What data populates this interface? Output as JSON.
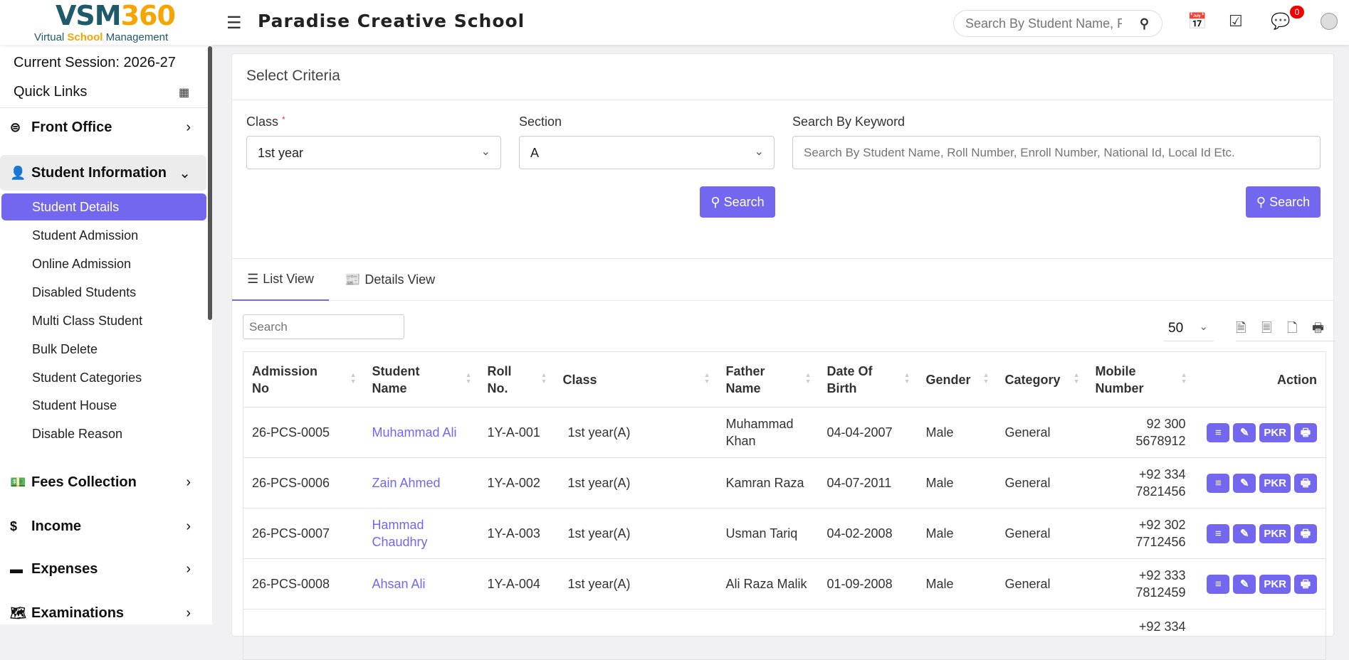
{
  "header": {
    "logo_main": "VSM",
    "logo_num": "360",
    "logo_sub_1": "Virtual",
    "logo_sub_2": "School",
    "logo_sub_3": "Management",
    "school_name": "Paradise Creative School",
    "search_placeholder": "Search By Student Name, Roll Number",
    "notification_count": "0"
  },
  "sidebar": {
    "session": "Current Session: 2026-27",
    "quick_links": "Quick Links",
    "menus": [
      {
        "label": "Front Office",
        "icon": "front-office-icon"
      },
      {
        "label": "Student Information",
        "icon": "user-plus-icon"
      },
      {
        "label": "Fees Collection",
        "icon": "money-icon"
      },
      {
        "label": "Income",
        "icon": "dollar-icon"
      },
      {
        "label": "Expenses",
        "icon": "credit-card-icon"
      },
      {
        "label": "Examinations",
        "icon": "map-icon"
      }
    ],
    "sub_items": [
      "Student Details",
      "Student Admission",
      "Online Admission",
      "Disabled Students",
      "Multi Class Student",
      "Bulk Delete",
      "Student Categories",
      "Student House",
      "Disable Reason"
    ]
  },
  "criteria": {
    "title": "Select Criteria",
    "class_label": "Class",
    "required_mark": "*",
    "class_value": "1st year",
    "section_label": "Section",
    "section_value": "A",
    "keyword_label": "Search By Keyword",
    "keyword_placeholder": "Search By Student Name, Roll Number, Enroll Number, National Id, Local Id Etc.",
    "search_button": "Search"
  },
  "tabs": {
    "list_view": "List View",
    "details_view": "Details View"
  },
  "table_controls": {
    "search_placeholder": "Search",
    "page_size": "50"
  },
  "accent_color": "#7367f0",
  "table": {
    "columns": [
      "Admission No",
      "Student Name",
      "Roll No.",
      "Class",
      "Father Name",
      "Date Of Birth",
      "Gender",
      "Category",
      "Mobile Number",
      "Action"
    ],
    "action_pkr": "PKR",
    "rows": [
      {
        "admission": "26-PCS-0005",
        "name": "Muhammad Ali",
        "roll": "1Y-A-001",
        "class": "1st year(A)",
        "father": "Muhammad Khan",
        "dob": "04-04-2007",
        "gender": "Male",
        "category": "General",
        "mobile": "92 300 5678912"
      },
      {
        "admission": "26-PCS-0006",
        "name": "Zain Ahmed",
        "roll": "1Y-A-002",
        "class": "1st year(A)",
        "father": "Kamran Raza",
        "dob": "04-07-2011",
        "gender": "Male",
        "category": "General",
        "mobile": "+92 334 7821456"
      },
      {
        "admission": "26-PCS-0007",
        "name": "Hammad Chaudhry",
        "roll": "1Y-A-003",
        "class": "1st year(A)",
        "father": "Usman Tariq",
        "dob": "04-02-2008",
        "gender": "Male",
        "category": "General",
        "mobile": "+92 302 7712456"
      },
      {
        "admission": "26-PCS-0008",
        "name": "Ahsan Ali",
        "roll": "1Y-A-004",
        "class": "1st year(A)",
        "father": "Ali Raza Malik",
        "dob": "01-09-2008",
        "gender": "Male",
        "category": "General",
        "mobile": "+92 333 7812459"
      }
    ],
    "partial_row_mobile": "+92 334"
  }
}
